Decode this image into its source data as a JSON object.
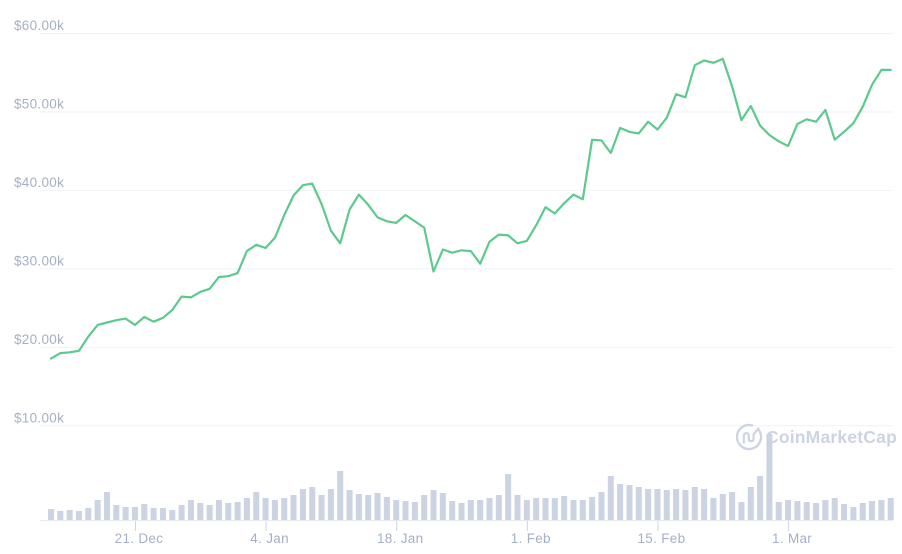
{
  "chart": {
    "background": "#ffffff",
    "watermark": {
      "icon": "coinmarketcap-logo",
      "label": "CoinMarketCap",
      "color": "#ccd3e2"
    },
    "colors": {
      "price_line": "#5ec98f",
      "volume_bar": "#ccd3e2",
      "gridline": "#f0f2f6",
      "axis_baseline": "#e7eaf1",
      "tick": "#ccd3e0",
      "axis_label": "#a6b0c4"
    }
  },
  "chart_data": {
    "type": "line",
    "title": "",
    "legend": "none",
    "grid": "horizontal-only",
    "x_axis": {
      "tick_labels": [
        "21. Dec",
        "4. Jan",
        "18. Jan",
        "1. Feb",
        "15. Feb",
        "1. Mar"
      ],
      "tick_indices": [
        9,
        23,
        37,
        51,
        65,
        79
      ]
    },
    "y_axis": {
      "tick_labels": [
        "$10.00k",
        "$20.00k",
        "$30.00k",
        "$40.00k",
        "$50.00k",
        "$60.00k"
      ],
      "tick_values": [
        10000,
        20000,
        30000,
        40000,
        50000,
        60000
      ],
      "range_shown": [
        10000,
        60000
      ]
    },
    "series": [
      {
        "name": "price-usd",
        "type": "line",
        "color": "#5ec98f",
        "values": [
          18500,
          19200,
          19300,
          19500,
          21300,
          22800,
          23100,
          23400,
          23600,
          22800,
          23800,
          23200,
          23700,
          24700,
          26400,
          26300,
          27000,
          27400,
          28900,
          29000,
          29400,
          32200,
          33000,
          32600,
          33900,
          36800,
          39300,
          40600,
          40800,
          38200,
          34800,
          33200,
          37500,
          39400,
          38100,
          36500,
          36000,
          35800,
          36800,
          36000,
          35200,
          29600,
          32400,
          32000,
          32300,
          32200,
          30600,
          33400,
          34300,
          34200,
          33200,
          33500,
          35500,
          37800,
          37000,
          38300,
          39400,
          38800,
          46400,
          46300,
          44700,
          47900,
          47400,
          47200,
          48700,
          47700,
          49200,
          52200,
          51800,
          55900,
          56500,
          56200,
          56700,
          53200,
          48900,
          50700,
          48200,
          47000,
          46200,
          45600,
          48400,
          49000,
          48700,
          50200,
          46400,
          47400,
          48500,
          50600,
          53400,
          55300,
          55300
        ]
      },
      {
        "name": "volume",
        "type": "bar",
        "color": "#ccd3e2",
        "unit": "relative-height (no volume scale shown in image)",
        "values": [
          11,
          9,
          10,
          9,
          12,
          20,
          28,
          15,
          13,
          13,
          16,
          12,
          12,
          10,
          15,
          20,
          17,
          15,
          20,
          17,
          18,
          22,
          28,
          22,
          20,
          22,
          25,
          31,
          33,
          25,
          31,
          49,
          30,
          26,
          25,
          27,
          23,
          20,
          19,
          18,
          25,
          30,
          27,
          19,
          17,
          20,
          20,
          22,
          25,
          46,
          25,
          20,
          22,
          22,
          22,
          24,
          20,
          20,
          23,
          28,
          44,
          36,
          35,
          33,
          31,
          31,
          30,
          31,
          30,
          33,
          31,
          22,
          26,
          28,
          18,
          33,
          44,
          86,
          18,
          20,
          19,
          18,
          17,
          20,
          22,
          16,
          13,
          17,
          19,
          20,
          22
        ]
      }
    ]
  }
}
